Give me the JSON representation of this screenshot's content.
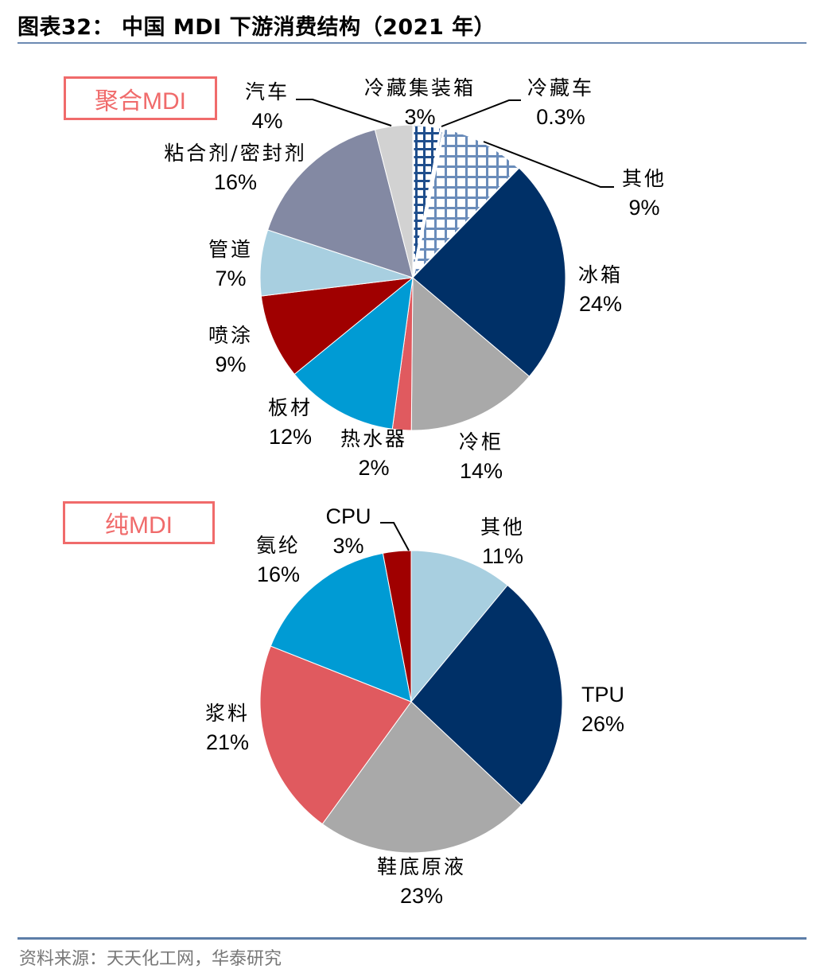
{
  "header": {
    "title": "图表32：  中国 MDI 下游消费结构（2021 年）"
  },
  "footer": {
    "source": "资料来源：天天化工网，华泰研究"
  },
  "colors": {
    "accent_rule": "#6c8ab3",
    "tag_border": "#f06b6b"
  },
  "chart_data": [
    {
      "type": "pie",
      "title": "聚合MDI",
      "start_angle": "12 o'clock, clockwise",
      "categories": [
        "冷藏集装箱",
        "冷藏车",
        "其他",
        "冰箱",
        "冷柜",
        "热水器",
        "板材",
        "喷涂",
        "管道",
        "粘合剂/密封剂",
        "汽车"
      ],
      "values": [
        3,
        0.3,
        9,
        24,
        14,
        2,
        12,
        9,
        7,
        16,
        4
      ],
      "labels": [
        "3%",
        "0.3%",
        "9%",
        "24%",
        "14%",
        "2%",
        "12%",
        "9%",
        "7%",
        "16%",
        "4%"
      ],
      "colors": [
        "#1f4e8c",
        "#1f4e8c",
        "#5b7fb0",
        "#003067",
        "#a9a9a9",
        "#e05a5f",
        "#009bd4",
        "#a00000",
        "#a8cfe0",
        "#8389a3",
        "#d2d2d2"
      ],
      "patterns": [
        "plaid-dark",
        "plaid-dark",
        "grid-light",
        "solid",
        "solid",
        "solid",
        "solid",
        "solid",
        "solid",
        "solid",
        "solid"
      ]
    },
    {
      "type": "pie",
      "title": "纯MDI",
      "start_angle": "12 o'clock, clockwise",
      "categories": [
        "其他",
        "TPU",
        "鞋底原液",
        "浆料",
        "氨纶",
        "CPU"
      ],
      "values": [
        11,
        26,
        23,
        21,
        16,
        3
      ],
      "labels": [
        "11%",
        "26%",
        "23%",
        "21%",
        "16%",
        "3%"
      ],
      "colors": [
        "#a8cfe0",
        "#003067",
        "#a9a9a9",
        "#e05a5f",
        "#009bd4",
        "#a00000"
      ]
    }
  ],
  "pies": {
    "p1": {
      "tag": "聚合MDI",
      "labels": {
        "s0": {
          "name": "冷藏集装箱",
          "pct": "3%"
        },
        "s1": {
          "name": "冷藏车",
          "pct": "0.3%"
        },
        "s2": {
          "name": "其他",
          "pct": "9%"
        },
        "s3": {
          "name": "冰箱",
          "pct": "24%"
        },
        "s4": {
          "name": "冷柜",
          "pct": "14%"
        },
        "s5": {
          "name": "热水器",
          "pct": "2%"
        },
        "s6": {
          "name": "板材",
          "pct": "12%"
        },
        "s7": {
          "name": "喷涂",
          "pct": "9%"
        },
        "s8": {
          "name": "管道",
          "pct": "7%"
        },
        "s9": {
          "name": "粘合剂/密封剂",
          "pct": "16%"
        },
        "s10": {
          "name": "汽车",
          "pct": "4%"
        }
      }
    },
    "p2": {
      "tag": "纯MDI",
      "labels": {
        "s0": {
          "name": "其他",
          "pct": "11%"
        },
        "s1": {
          "name": "TPU",
          "pct": "26%"
        },
        "s2": {
          "name": "鞋底原液",
          "pct": "23%"
        },
        "s3": {
          "name": "浆料",
          "pct": "21%"
        },
        "s4": {
          "name": "氨纶",
          "pct": "16%"
        },
        "s5": {
          "name": "CPU",
          "pct": "3%"
        }
      }
    }
  }
}
